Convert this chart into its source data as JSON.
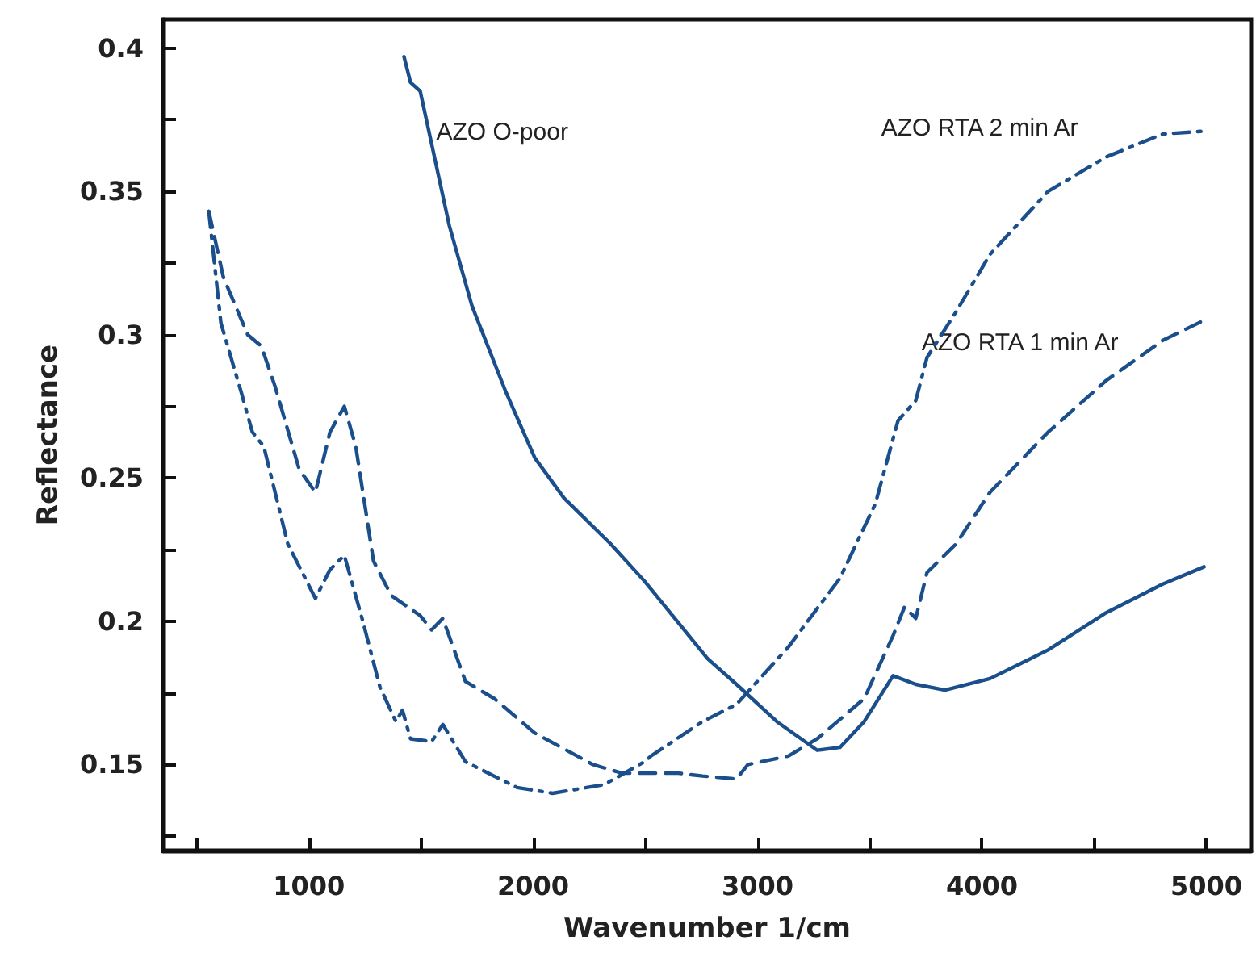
{
  "chart_data": {
    "type": "line",
    "xlabel": "Wavenumber 1/cm",
    "ylabel": "Reflectance",
    "xlim": [
      350,
      5200
    ],
    "ylim": [
      0.12,
      0.41
    ],
    "xticks": [
      {
        "value": 500,
        "label": null
      },
      1000,
      {
        "value": 1500,
        "label": null
      },
      2000,
      {
        "value": 2500,
        "label": null
      },
      3000,
      {
        "value": 3500,
        "label": null
      },
      4000,
      {
        "value": 4500,
        "label": null
      },
      5000
    ],
    "yticks": [
      {
        "value": 0.125,
        "label": null
      },
      0.15,
      {
        "value": 0.175,
        "label": null
      },
      0.2,
      {
        "value": 0.225,
        "label": null
      },
      0.25,
      {
        "value": 0.275,
        "label": null
      },
      0.3,
      {
        "value": 0.325,
        "label": null
      },
      0.35,
      {
        "value": 0.375,
        "label": null
      },
      0.4
    ],
    "grid": false,
    "marker": "none",
    "series": [
      {
        "name": "AZO O-poor",
        "color": "#1a4f8c",
        "line_style": "solid",
        "x": [
          1424,
          1453,
          1496,
          1626,
          1727,
          1878,
          2007,
          2137,
          2345,
          2496,
          2777,
          2906,
          3086,
          3266,
          3367,
          3475,
          3604,
          3705,
          3835,
          4036,
          4295,
          4554,
          4806,
          4990
        ],
        "values": [
          0.397,
          0.388,
          0.385,
          0.338,
          0.31,
          0.28,
          0.257,
          0.243,
          0.227,
          0.214,
          0.187,
          0.178,
          0.165,
          0.155,
          0.156,
          0.165,
          0.181,
          0.178,
          0.176,
          0.18,
          0.19,
          0.203,
          0.213,
          0.219
        ]
      },
      {
        "name": "AZO RTA 1 min Ar",
        "color": "#1a4f8c",
        "line_style": "dashed",
        "x": [
          554,
          619,
          727,
          788,
          849,
          957,
          1029,
          1094,
          1158,
          1209,
          1288,
          1367,
          1496,
          1547,
          1597,
          1698,
          1827,
          2007,
          2266,
          2396,
          2647,
          2755,
          2906,
          2957,
          3137,
          3266,
          3475,
          3604,
          3655,
          3705,
          3755,
          3885,
          4036,
          4295,
          4554,
          4806,
          4990
        ],
        "values": [
          0.343,
          0.32,
          0.3,
          0.296,
          0.282,
          0.253,
          0.245,
          0.266,
          0.275,
          0.261,
          0.221,
          0.209,
          0.202,
          0.197,
          0.201,
          0.179,
          0.173,
          0.161,
          0.15,
          0.147,
          0.147,
          0.146,
          0.145,
          0.15,
          0.153,
          0.159,
          0.173,
          0.195,
          0.205,
          0.201,
          0.217,
          0.227,
          0.245,
          0.266,
          0.284,
          0.298,
          0.305
        ]
      },
      {
        "name": "AZO RTA 2 min Ar",
        "color": "#1a4f8c",
        "line_style": "dashdot",
        "x": [
          554,
          608,
          698,
          748,
          799,
          906,
          1029,
          1094,
          1158,
          1237,
          1317,
          1388,
          1417,
          1453,
          1547,
          1597,
          1698,
          1928,
          2086,
          2316,
          2496,
          2525,
          2755,
          2906,
          3137,
          3367,
          3525,
          3626,
          3705,
          3755,
          3885,
          4036,
          4295,
          4554,
          4806,
          4990
        ],
        "values": [
          0.343,
          0.304,
          0.28,
          0.266,
          0.261,
          0.227,
          0.208,
          0.218,
          0.223,
          0.201,
          0.177,
          0.165,
          0.169,
          0.159,
          0.158,
          0.164,
          0.151,
          0.142,
          0.14,
          0.143,
          0.151,
          0.153,
          0.165,
          0.171,
          0.191,
          0.215,
          0.241,
          0.27,
          0.277,
          0.292,
          0.308,
          0.328,
          0.35,
          0.362,
          0.37,
          0.371
        ]
      }
    ]
  }
}
